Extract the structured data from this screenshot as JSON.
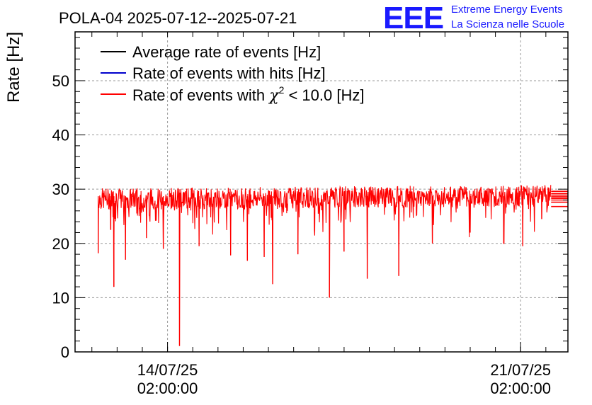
{
  "header": {
    "title": "POLA-04 2025-07-12--2025-07-21",
    "logo_text": "EEE",
    "logo_line1": "Extreme Energy Events",
    "logo_line2": "La Scienza nelle Scuole"
  },
  "colors": {
    "average": "#000000",
    "hits": "#0000cc",
    "chi2": "#ff0000",
    "logo": "#1a1aff",
    "grid": "#999999"
  },
  "chart_data": {
    "type": "line",
    "title": "POLA-04 2025-07-12--2025-07-21",
    "xlabel": "",
    "ylabel": "Rate [Hz]",
    "ylim": [
      0,
      59
    ],
    "xlim_days": [
      "2025-07-12T06:00:00",
      "2025-07-22T00:30:00"
    ],
    "yticks": [
      0,
      10,
      20,
      30,
      40,
      50
    ],
    "xticks": [
      {
        "date": "14/07/25",
        "time": "02:00:00",
        "at": "2025-07-14T02:00:00"
      },
      {
        "date": "21/07/25",
        "time": "02:00:00",
        "at": "2025-07-21T02:00:00"
      }
    ],
    "grid": true,
    "legend_position": "top-left",
    "legend": [
      {
        "label": "Average rate of events [Hz]",
        "color": "#000000"
      },
      {
        "label": "Rate of events with hits [Hz]",
        "color": "#0000cc"
      },
      {
        "label_prefix": "Rate of events with ",
        "label_symbol": "χ",
        "label_sup": "2",
        "label_suffix": " < 10.0 [Hz]",
        "color": "#ff0000"
      }
    ],
    "series": [
      {
        "name": "Rate of events with χ2 < 10.0 [Hz]",
        "start": "2025-07-12T17:00:00",
        "end": "2025-07-21T16:30:00",
        "baseline_start": 28.2,
        "baseline_end": 28.8,
        "band_low_noise": 26.0,
        "band_high_noise": 31.0,
        "dips": [
          {
            "at": "2025-07-12T17:00:00",
            "value": 18.2
          },
          {
            "at": "2025-07-12T23:00:00",
            "value": 22.5
          },
          {
            "at": "2025-07-13T00:30:00",
            "value": 12.0
          },
          {
            "at": "2025-07-13T06:00:00",
            "value": 17.0
          },
          {
            "at": "2025-07-13T16:00:00",
            "value": 21.0
          },
          {
            "at": "2025-07-14T00:00:00",
            "value": 19.0
          },
          {
            "at": "2025-07-14T07:40:00",
            "value": 1.1
          },
          {
            "at": "2025-07-14T17:00:00",
            "value": 19.5
          },
          {
            "at": "2025-07-15T08:00:00",
            "value": 17.8
          },
          {
            "at": "2025-07-15T16:00:00",
            "value": 16.8
          },
          {
            "at": "2025-07-16T00:00:00",
            "value": 17.5
          },
          {
            "at": "2025-07-16T04:00:00",
            "value": 12.5
          },
          {
            "at": "2025-07-16T16:00:00",
            "value": 18.0
          },
          {
            "at": "2025-07-17T07:00:00",
            "value": 10.0
          },
          {
            "at": "2025-07-17T14:00:00",
            "value": 18.5
          },
          {
            "at": "2025-07-18T01:00:00",
            "value": 13.5
          },
          {
            "at": "2025-07-18T16:00:00",
            "value": 14.0
          },
          {
            "at": "2025-07-19T08:00:00",
            "value": 20.0
          },
          {
            "at": "2025-07-20T02:00:00",
            "value": 22.0
          },
          {
            "at": "2025-07-20T18:00:00",
            "value": 20.0
          },
          {
            "at": "2025-07-21T03:00:00",
            "value": 19.5
          },
          {
            "at": "2025-07-21T12:00:00",
            "value": 24.5
          }
        ],
        "tail_levels": [
          26.8,
          27.6,
          28.0,
          28.3,
          28.6,
          28.9,
          29.2,
          29.6
        ]
      }
    ]
  }
}
